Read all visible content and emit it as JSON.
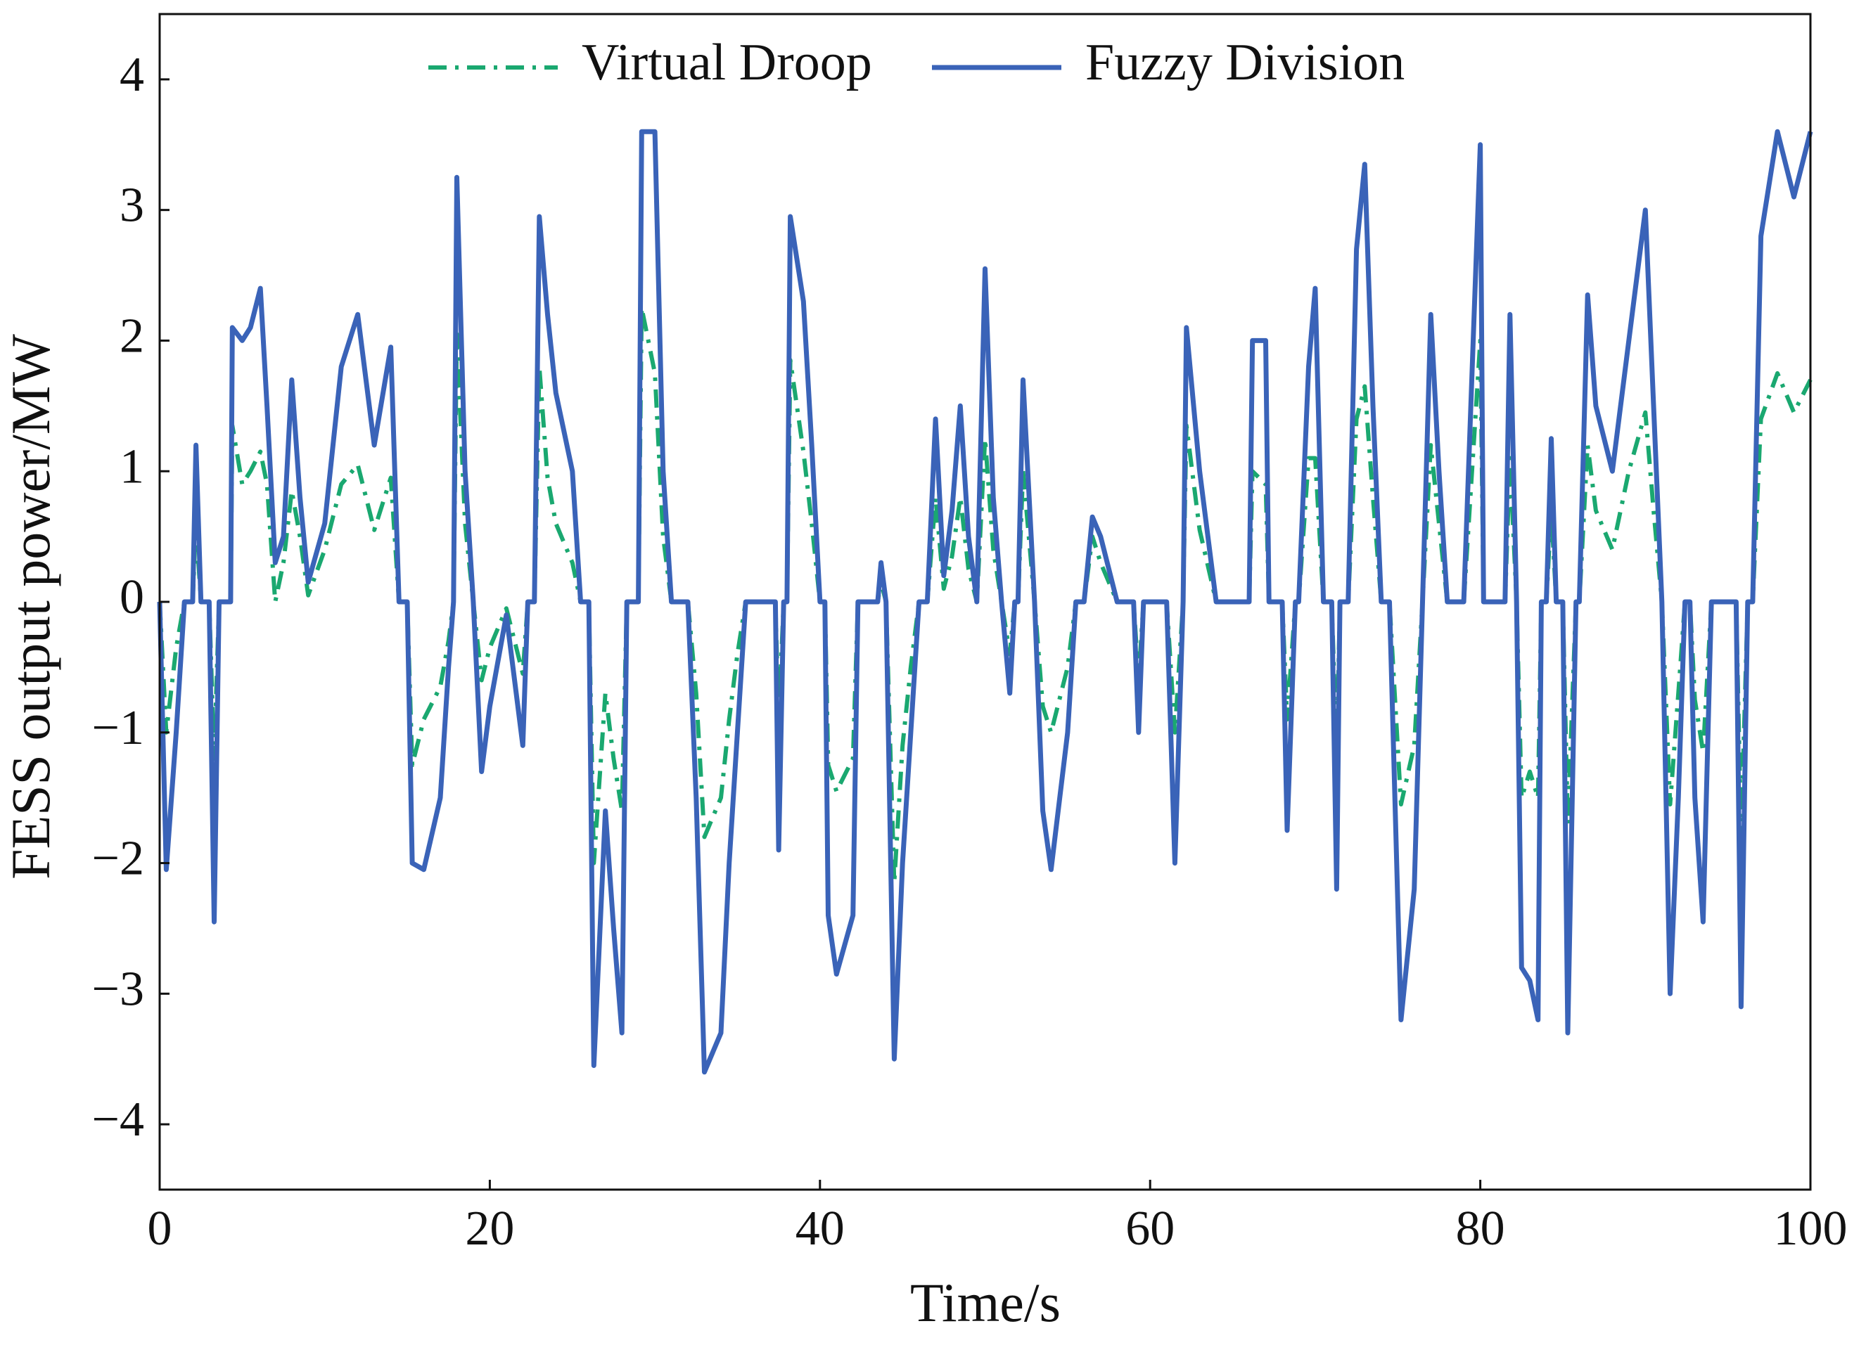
{
  "chart_data": {
    "type": "line",
    "x_label": "Time/s",
    "y_label": "FESS output power/MW",
    "xlim": [
      0,
      100
    ],
    "ylim": [
      -4.5,
      4.5
    ],
    "xticks": [
      0,
      20,
      40,
      60,
      80,
      100
    ],
    "yticks": [
      {
        "value": -4,
        "label": "−4"
      },
      {
        "value": -3,
        "label": "−3"
      },
      {
        "value": -2,
        "label": "−2"
      },
      {
        "value": -1,
        "label": "−1"
      },
      0,
      1,
      2,
      3,
      4
    ],
    "legend": "top",
    "x": [
      0,
      0.4,
      1,
      1.5,
      2,
      2.2,
      2.5,
      3,
      3.3,
      3.6,
      4.3,
      4.4,
      5,
      5.5,
      6.1,
      6.5,
      7,
      7.5,
      8,
      8.5,
      9,
      10,
      11,
      12,
      13,
      14,
      14.5,
      15,
      15.3,
      16,
      17,
      17.5,
      17.8,
      18,
      18.5,
      19,
      19.5,
      20,
      21,
      22,
      22.3,
      22.7,
      23,
      23.5,
      24,
      25,
      25.5,
      26,
      26.3,
      27,
      27.5,
      28,
      28.3,
      29,
      29.2,
      30,
      30.5,
      31,
      32,
      32.5,
      33,
      34,
      34.5,
      35,
      35.5,
      37.3,
      37.5,
      37.8,
      38,
      38.2,
      39,
      39.5,
      40,
      40.3,
      40.5,
      41,
      42,
      42.3,
      43.5,
      43.7,
      44,
      44.5,
      45,
      45.5,
      46,
      46.5,
      47,
      47.5,
      48,
      48.5,
      49,
      49.5,
      50,
      50.5,
      51,
      51.5,
      51.8,
      52,
      52.3,
      53,
      53.5,
      54,
      55,
      55.5,
      56,
      56.5,
      57,
      58,
      59,
      59.3,
      59.6,
      61,
      61.5,
      62,
      62.2,
      63,
      64,
      66,
      66.2,
      67,
      67.2,
      68,
      68.3,
      68.8,
      69,
      69.6,
      70,
      70.5,
      71,
      71.3,
      71.5,
      72,
      72.5,
      73,
      73.5,
      74,
      74.5,
      75.2,
      76,
      76.5,
      77,
      77.5,
      78,
      79,
      80,
      80.2,
      81.5,
      81.8,
      82.2,
      82.5,
      83,
      83.5,
      83.7,
      84,
      84.3,
      84.6,
      85,
      85.3,
      85.8,
      86,
      86.5,
      87,
      88,
      89,
      90,
      90.5,
      91,
      91.5,
      92,
      92.4,
      92.7,
      93,
      93.5,
      94,
      95.5,
      95.8,
      96.2,
      96.5,
      97,
      98,
      99,
      100
    ],
    "series": [
      {
        "name": "Virtual Droop",
        "color": "#1aa870",
        "style": "dash-dot",
        "values": [
          0,
          -1.0,
          -0.35,
          0,
          0,
          0.6,
          0,
          0,
          -1.2,
          0,
          0,
          1.35,
          0.9,
          1.0,
          1.15,
          0.9,
          0.0,
          0.3,
          0.85,
          0.5,
          0.05,
          0.4,
          0.9,
          1.05,
          0.55,
          0.95,
          0,
          0,
          -1.25,
          -0.9,
          -0.65,
          -0.3,
          0,
          2.05,
          0.6,
          0,
          -0.6,
          -0.35,
          -0.05,
          -0.55,
          0,
          0,
          1.8,
          0.95,
          0.6,
          0.3,
          0,
          0,
          -2.0,
          -0.7,
          -1.2,
          -1.6,
          0,
          0,
          2.25,
          1.75,
          0.5,
          0,
          0,
          -0.7,
          -1.8,
          -1.5,
          -0.9,
          -0.4,
          0,
          0,
          -0.9,
          0,
          0,
          1.85,
          1.15,
          0.6,
          0,
          0,
          -1.25,
          -1.45,
          -1.2,
          0,
          0,
          0.15,
          0,
          -2.15,
          -1.1,
          -0.5,
          0,
          0,
          0.8,
          0.1,
          0.35,
          0.8,
          0.25,
          0,
          1.25,
          0.4,
          0,
          -0.4,
          0,
          0,
          1.0,
          0,
          -0.8,
          -1.0,
          -0.5,
          0,
          0,
          0.5,
          0.3,
          0,
          0,
          -0.6,
          0,
          0,
          -1.0,
          0,
          1.35,
          0.55,
          0,
          0,
          1.0,
          0.9,
          0,
          0,
          -0.9,
          0,
          0,
          1.1,
          1.1,
          0,
          0,
          -1.2,
          0,
          0,
          1.4,
          1.65,
          0.8,
          0,
          0,
          -1.55,
          -1.1,
          0,
          1.2,
          0.6,
          0,
          0,
          2.0,
          0,
          0,
          1.1,
          0,
          -1.5,
          -1.3,
          -1.5,
          0,
          0,
          0.7,
          0,
          0,
          -1.7,
          0,
          0,
          1.2,
          0.7,
          0.4,
          1.0,
          1.45,
          0.7,
          0,
          -1.55,
          -0.7,
          0,
          0,
          -0.75,
          -1.15,
          0,
          0,
          -1.8,
          0,
          0,
          1.4,
          1.75,
          1.45,
          1.7
        ]
      },
      {
        "name": "Fuzzy Division",
        "color": "#3a63b8",
        "style": "solid",
        "values": [
          0,
          -2.05,
          -1.0,
          0,
          0,
          1.2,
          0,
          0,
          -2.45,
          0,
          0,
          2.1,
          2.0,
          2.1,
          2.4,
          1.5,
          0.3,
          0.5,
          1.7,
          0.8,
          0.15,
          0.6,
          1.8,
          2.2,
          1.2,
          1.95,
          0,
          0,
          -2.0,
          -2.05,
          -1.5,
          -0.5,
          0,
          3.25,
          1.0,
          0,
          -1.3,
          -0.8,
          -0.1,
          -1.1,
          0,
          0,
          2.95,
          2.2,
          1.6,
          1.0,
          0,
          0,
          -3.55,
          -1.6,
          -2.5,
          -3.3,
          0,
          0,
          3.6,
          3.6,
          1.0,
          0,
          0,
          -1.5,
          -3.6,
          -3.3,
          -2.0,
          -1.0,
          0,
          0,
          -1.9,
          0,
          0,
          2.95,
          2.3,
          1.2,
          0,
          0,
          -2.4,
          -2.85,
          -2.4,
          0,
          0,
          0.3,
          0,
          -3.5,
          -2.0,
          -1.0,
          0,
          0,
          1.4,
          0.2,
          0.7,
          1.5,
          0.5,
          0,
          2.55,
          0.8,
          0,
          -0.7,
          0,
          0,
          1.7,
          0,
          -1.6,
          -2.05,
          -1.0,
          0,
          0,
          0.65,
          0.5,
          0,
          0,
          -1.0,
          0,
          0,
          -2.0,
          0,
          2.1,
          1.0,
          0,
          0,
          2.0,
          2.0,
          0,
          0,
          -1.75,
          0,
          0,
          1.8,
          2.4,
          0,
          0,
          -2.2,
          0,
          0,
          2.7,
          3.35,
          1.5,
          0,
          0,
          -3.2,
          -2.2,
          0,
          2.2,
          1.0,
          0,
          0,
          3.5,
          0,
          0,
          2.2,
          0,
          -2.8,
          -2.9,
          -3.2,
          0,
          0,
          1.25,
          0,
          0,
          -3.3,
          0,
          0,
          2.35,
          1.5,
          1.0,
          2.0,
          3.0,
          1.5,
          0,
          -3.0,
          -1.5,
          0,
          0,
          -1.5,
          -2.45,
          0,
          0,
          -3.1,
          0,
          0,
          2.8,
          3.6,
          3.1,
          3.6
        ]
      }
    ]
  }
}
